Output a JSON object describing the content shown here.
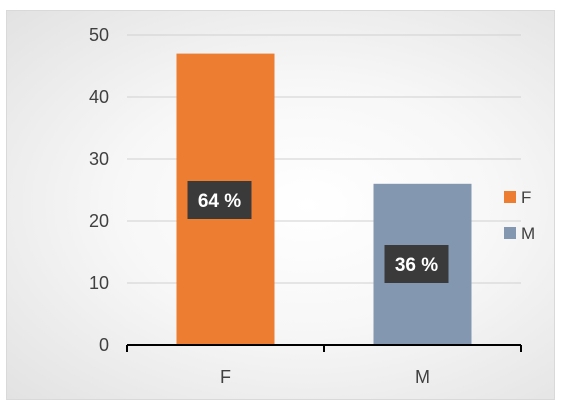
{
  "chart_data": {
    "type": "bar",
    "categories": [
      "F",
      "M"
    ],
    "values": [
      47,
      26
    ],
    "data_labels": [
      "64 %",
      "36 %"
    ],
    "title": "",
    "xlabel": "",
    "ylabel": "",
    "ylim": [
      0,
      50
    ],
    "yticks": [
      0,
      10,
      20,
      30,
      40,
      50
    ],
    "grid": true,
    "legend": "right",
    "legend_entries": [
      "F",
      "M"
    ],
    "colors": [
      "#ed7d31",
      "#8497b0"
    ],
    "data_label_bg": "#3a3a3a"
  }
}
